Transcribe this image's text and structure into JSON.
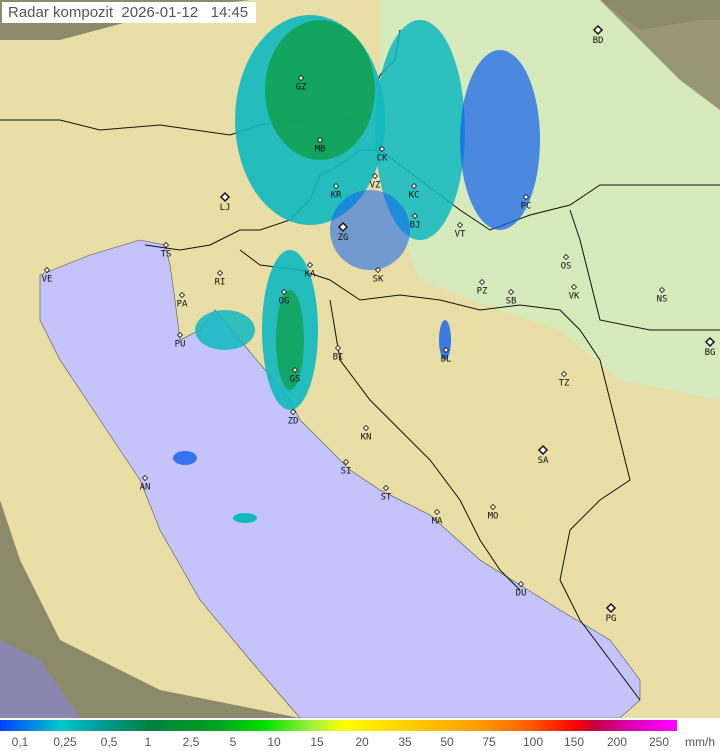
{
  "title": "Radar kompozit  2026-01-12   14:45",
  "colors": {
    "sea": "#c4c4fa",
    "land": "#e9dfa6",
    "plain": "#d6eabc",
    "outside": "#8d8a6c",
    "rain_light": "#1060f0",
    "rain_mid": "#10b8c0",
    "rain_heavy": "#10a050"
  },
  "cities": [
    "BD",
    "GZ",
    "MB",
    "CK",
    "VZ",
    "KR",
    "KC",
    "LJ",
    "BJ",
    "VT",
    "PC",
    "ZG",
    "TS",
    "VE",
    "RI",
    "KA",
    "SK",
    "OS",
    "PZ",
    "SB",
    "VK",
    "NS",
    "PA",
    "OG",
    "PU",
    "BI",
    "BL",
    "BG",
    "TZ",
    "GS",
    "ZD",
    "KN",
    "SA",
    "AN",
    "SI",
    "ST",
    "MA",
    "MO",
    "DU",
    "PG"
  ],
  "legend": {
    "labels": [
      "0,1",
      "0,25",
      "0,5",
      "1",
      "2,5",
      "5",
      "10",
      "15",
      "20",
      "35",
      "50",
      "75",
      "100",
      "150",
      "200",
      "250"
    ],
    "unit": "mm/h"
  }
}
